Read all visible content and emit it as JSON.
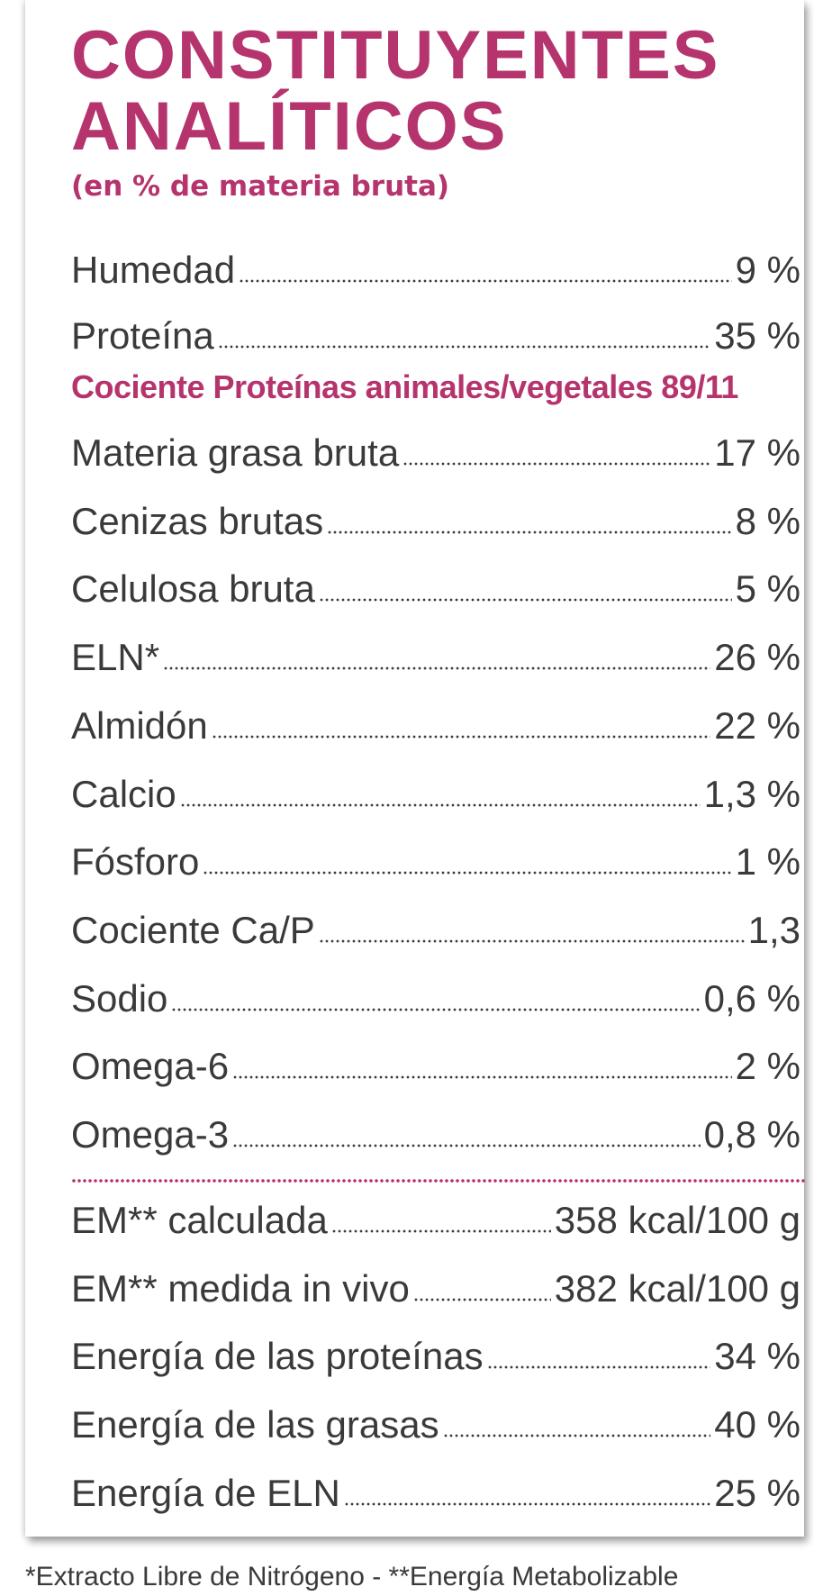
{
  "header": {
    "title_lines": [
      "CONSTITUYENTES",
      "ANALÍTICOS"
    ],
    "subtitle": "(en % de materia bruta)"
  },
  "rows_top": [
    {
      "label": "Humedad",
      "value": "9 %"
    },
    {
      "label": "Proteína",
      "value": "35 %"
    }
  ],
  "protein_ratio": "Cociente Proteínas animales/vegetales 89/11",
  "rows_main": [
    {
      "label": "Materia grasa bruta",
      "value": "17 %"
    },
    {
      "label": "Cenizas brutas",
      "value": "8 %"
    },
    {
      "label": "Celulosa bruta",
      "value": "5 %"
    },
    {
      "label": "ELN*",
      "value": "26 %"
    },
    {
      "label": "Almidón",
      "value": "22 %"
    },
    {
      "label": "Calcio",
      "value": "1,3 %"
    },
    {
      "label": "Fósforo",
      "value": "1 %"
    },
    {
      "label": "Cociente Ca/P",
      "value": "1,3"
    },
    {
      "label": "Sodio",
      "value": "0,6 %"
    },
    {
      "label": "Omega-6",
      "value": "2 %"
    },
    {
      "label": "Omega-3",
      "value": "0,8 %"
    }
  ],
  "rows_energy": [
    {
      "label": "EM** calculada",
      "value": "358 kcal/100 g"
    },
    {
      "label": "EM** medida in vivo",
      "value": "382 kcal/100 g"
    },
    {
      "label": "Energía de las proteínas",
      "value": "34 %"
    },
    {
      "label": "Energía de las grasas",
      "value": "40 %"
    },
    {
      "label": "Energía de ELN",
      "value": "25 %"
    }
  ],
  "footnote": "*Extracto Libre de Nitrógeno - **Energía Metabolizable"
}
